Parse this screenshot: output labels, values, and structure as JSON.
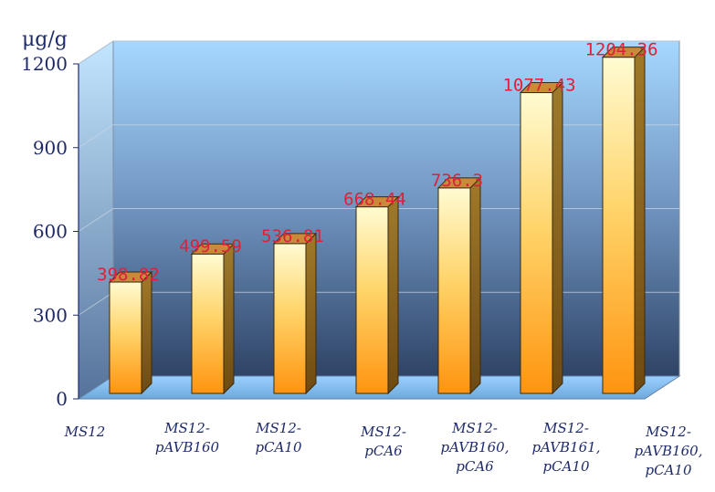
{
  "chart_data": {
    "type": "bar",
    "ylabel": "μg/g",
    "ylim": [
      0,
      1200
    ],
    "yticks": [
      "0",
      "300",
      "600",
      "900",
      "1200"
    ],
    "categories": [
      [
        "MS12"
      ],
      [
        "MS12-",
        "pAVB160"
      ],
      [
        "MS12-",
        "pCA10"
      ],
      [
        "MS12-",
        "pCA6"
      ],
      [
        "MS12-",
        "pAVB160,",
        "pCA6"
      ],
      [
        "MS12-",
        "pAVB161,",
        "pCA10"
      ],
      [
        "MS12-",
        "pAVB160,",
        "pCA10"
      ]
    ],
    "values": [
      398.82,
      499.59,
      536.81,
      668.44,
      736.3,
      1077.43,
      1204.36
    ],
    "value_labels": [
      "398.82",
      "499.59",
      "536.81",
      "668.44",
      "736.3",
      "1077.43",
      "1204.36"
    ],
    "grid": true,
    "colors": {
      "bar_top": "#fffbd0",
      "bar_bottom": "#ff9a12",
      "bar_side": "#8a5a16",
      "bar_cap": "#c98a3a",
      "wall_top": "#9fd3ff",
      "wall_bottom": "#34496a",
      "floor": "#8ec6f5",
      "axis_text": "#1f2a6b",
      "value_text": "#e0203a"
    }
  }
}
